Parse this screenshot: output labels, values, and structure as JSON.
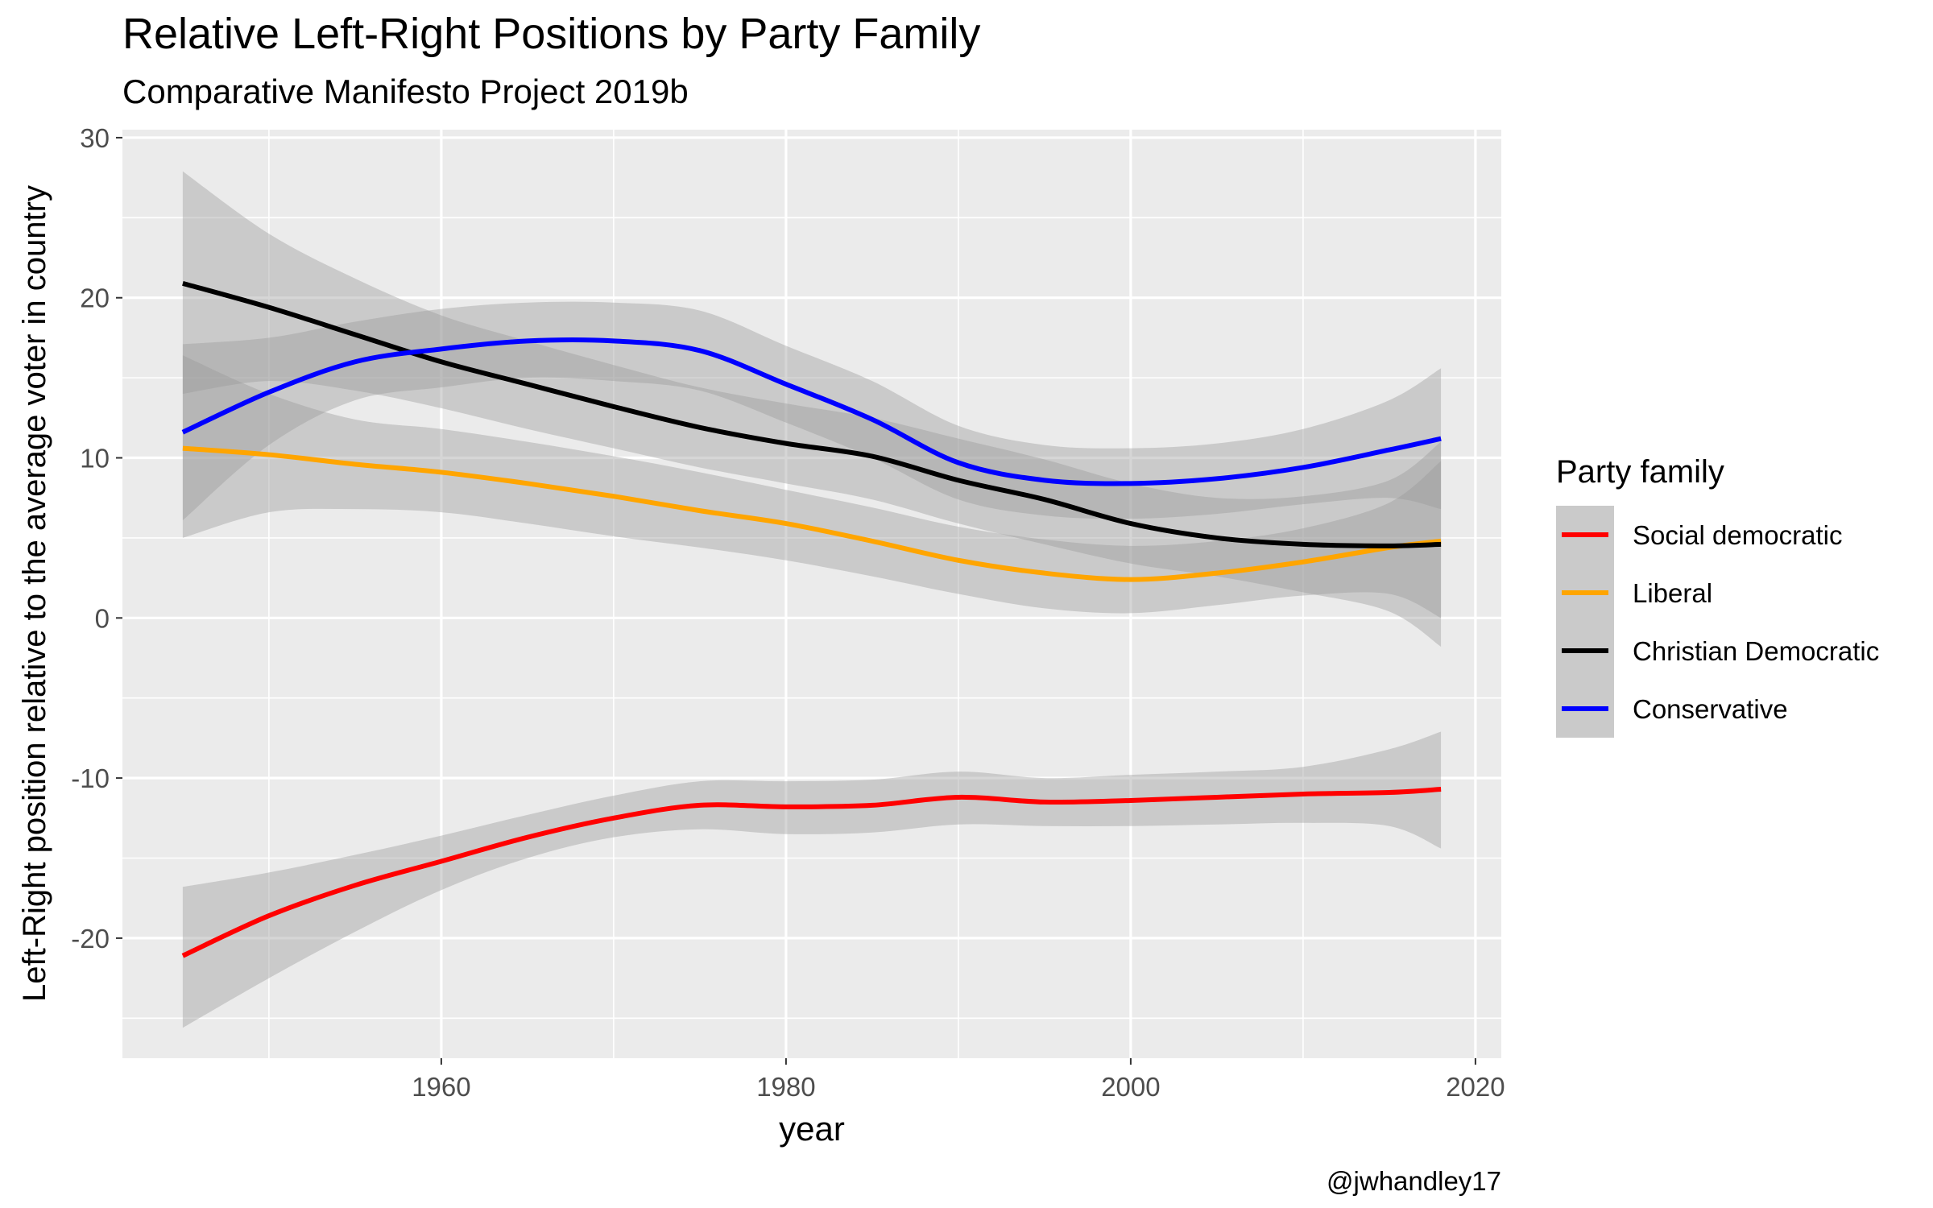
{
  "chart_data": {
    "type": "line",
    "title": "Relative Left-Right Positions by Party Family",
    "subtitle": "Comparative Manifesto Project 2019b",
    "xlabel": "year",
    "ylabel": "Left-Right position relative to the average voter in country",
    "caption": "@jwhandley17",
    "xlim": [
      1941.5,
      2021.5
    ],
    "ylim": [
      -27.5,
      30.5
    ],
    "x_ticks": [
      1960,
      1980,
      2000,
      2020
    ],
    "x_tick_labels": [
      "1960",
      "1980",
      "2000",
      "2020"
    ],
    "y_ticks": [
      -20,
      -10,
      0,
      10,
      20,
      30
    ],
    "y_tick_labels": [
      "-20",
      "-10",
      "0",
      "10",
      "20",
      "30"
    ],
    "grid": true,
    "legend": {
      "title": "Party family",
      "position": "right"
    },
    "x": [
      1945,
      1950,
      1955,
      1960,
      1965,
      1970,
      1975,
      1980,
      1985,
      1990,
      1995,
      2000,
      2005,
      2010,
      2015,
      2018
    ],
    "series": [
      {
        "name": "Social democratic",
        "color": "#ff0000",
        "values": [
          -21.1,
          -18.6,
          -16.7,
          -15.2,
          -13.7,
          -12.5,
          -11.7,
          -11.8,
          -11.7,
          -11.2,
          -11.5,
          -11.4,
          -11.2,
          -11.0,
          -10.9,
          -10.7
        ],
        "ci_lower": [
          -25.6,
          -22.5,
          -19.6,
          -17.0,
          -15.0,
          -13.7,
          -13.2,
          -13.5,
          -13.4,
          -12.9,
          -13.0,
          -13.0,
          -12.9,
          -12.8,
          -13.0,
          -14.4
        ],
        "ci_upper": [
          -16.8,
          -15.9,
          -14.8,
          -13.6,
          -12.3,
          -11.1,
          -10.2,
          -10.2,
          -10.1,
          -9.6,
          -10.0,
          -9.8,
          -9.6,
          -9.3,
          -8.2,
          -7.1
        ]
      },
      {
        "name": "Liberal",
        "color": "#ffa500",
        "values": [
          10.6,
          10.2,
          9.6,
          9.1,
          8.4,
          7.6,
          6.7,
          5.9,
          4.8,
          3.6,
          2.8,
          2.4,
          2.8,
          3.5,
          4.4,
          4.8
        ],
        "ci_lower": [
          5.0,
          6.6,
          6.8,
          6.6,
          5.9,
          5.1,
          4.4,
          3.6,
          2.6,
          1.5,
          0.6,
          0.3,
          0.8,
          1.4,
          1.5,
          0.0
        ],
        "ci_upper": [
          16.4,
          14.0,
          12.4,
          11.8,
          11.0,
          10.1,
          9.1,
          8.0,
          6.9,
          5.7,
          4.9,
          4.5,
          4.8,
          5.6,
          7.2,
          9.8
        ]
      },
      {
        "name": "Christian Democratic",
        "color": "#000000",
        "values": [
          20.9,
          19.4,
          17.7,
          16.0,
          14.6,
          13.2,
          11.9,
          10.9,
          10.1,
          8.6,
          7.4,
          5.9,
          5.0,
          4.6,
          4.5,
          4.6
        ],
        "ci_lower": [
          14.0,
          14.8,
          14.2,
          13.1,
          11.8,
          10.6,
          9.4,
          8.4,
          7.4,
          5.9,
          4.6,
          3.4,
          2.6,
          1.6,
          0.4,
          -1.8
        ],
        "ci_upper": [
          27.9,
          24.0,
          21.2,
          18.9,
          17.3,
          15.8,
          14.4,
          13.4,
          12.5,
          11.2,
          9.9,
          8.4,
          7.5,
          7.6,
          8.6,
          11.0
        ]
      },
      {
        "name": "Conservative",
        "color": "#0000ff",
        "values": [
          11.6,
          14.1,
          16.0,
          16.8,
          17.3,
          17.3,
          16.7,
          14.6,
          12.4,
          9.7,
          8.6,
          8.4,
          8.7,
          9.4,
          10.5,
          11.2
        ],
        "ci_lower": [
          6.1,
          10.8,
          13.6,
          14.4,
          15.0,
          14.8,
          14.2,
          12.2,
          10.0,
          7.4,
          6.4,
          6.2,
          6.5,
          7.1,
          7.5,
          6.8
        ],
        "ci_upper": [
          17.1,
          17.5,
          18.5,
          19.3,
          19.7,
          19.7,
          19.2,
          17.0,
          14.8,
          12.0,
          10.8,
          10.6,
          10.9,
          11.8,
          13.6,
          15.6
        ]
      }
    ]
  }
}
